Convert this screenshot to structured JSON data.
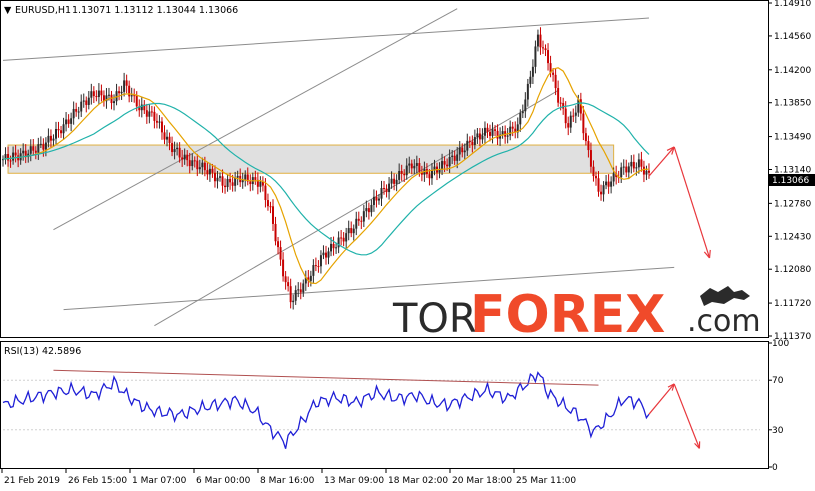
{
  "header": {
    "symbol": "EURUSD,H1",
    "ohlc": "1.13071 1.13112 1.13044 1.13066"
  },
  "logo": {
    "text_tor": "TOR",
    "text_forex": "FOREX",
    "text_com": ".com"
  },
  "chart_data": [
    {
      "type": "candlestick",
      "title": "EURUSD,H1",
      "ylim": [
        1.1137,
        1.1491
      ],
      "y_ticks": [
        "1.14910",
        "1.14560",
        "1.14200",
        "1.13850",
        "1.13490",
        "1.13140",
        "1.12780",
        "1.12430",
        "1.12080",
        "1.11720",
        "1.11370"
      ],
      "current_price": "1.13066",
      "x_ticks": [
        "21 Feb 2019",
        "26 Feb 15:00",
        "1 Mar 07:00",
        "6 Mar 00:00",
        "8 Mar 16:00",
        "13 Mar 09:00",
        "18 Mar 02:00",
        "20 Mar 18:00",
        "25 Mar 11:00"
      ],
      "price_path": [
        [
          0,
          1.1325
        ],
        [
          4,
          1.133
        ],
        [
          8,
          1.134
        ],
        [
          12,
          1.136
        ],
        [
          15,
          1.138
        ],
        [
          18,
          1.1395
        ],
        [
          22,
          1.1388
        ],
        [
          24,
          1.1405
        ],
        [
          27,
          1.138
        ],
        [
          30,
          1.137
        ],
        [
          33,
          1.134
        ],
        [
          36,
          1.1325
        ],
        [
          40,
          1.1315
        ],
        [
          44,
          1.1298
        ],
        [
          47,
          1.1305
        ],
        [
          51,
          1.13
        ],
        [
          53,
          1.127
        ],
        [
          55,
          1.1215
        ],
        [
          57,
          1.1175
        ],
        [
          60,
          1.1195
        ],
        [
          63,
          1.122
        ],
        [
          66,
          1.1235
        ],
        [
          69,
          1.125
        ],
        [
          72,
          1.127
        ],
        [
          75,
          1.129
        ],
        [
          78,
          1.1305
        ],
        [
          81,
          1.132
        ],
        [
          84,
          1.1308
        ],
        [
          87,
          1.1318
        ],
        [
          90,
          1.133
        ],
        [
          93,
          1.1345
        ],
        [
          96,
          1.1355
        ],
        [
          99,
          1.135
        ],
        [
          102,
          1.136
        ],
        [
          104,
          1.14
        ],
        [
          106,
          1.1455
        ],
        [
          108,
          1.143
        ],
        [
          110,
          1.139
        ],
        [
          112,
          1.136
        ],
        [
          114,
          1.1385
        ],
        [
          116,
          1.133
        ],
        [
          118,
          1.129
        ],
        [
          120,
          1.13
        ],
        [
          123,
          1.1315
        ],
        [
          126,
          1.132
        ],
        [
          128,
          1.1307
        ]
      ],
      "overlays": [
        {
          "name": "moving average (fast)",
          "color": "#e6a300"
        },
        {
          "name": "moving average (slow)",
          "color": "#20b2aa"
        }
      ],
      "zone": {
        "low": 1.131,
        "high": 1.134,
        "color": "#d3d3d3"
      },
      "forecast_color": "#e8383d"
    },
    {
      "type": "line",
      "title": "RSI(13) 42.5896",
      "ylim": [
        0,
        100
      ],
      "y_ticks": [
        "100",
        "70",
        "30",
        "0"
      ],
      "series": [
        {
          "name": "RSI(13)",
          "color": "#1f1fd6",
          "values": [
            [
              0,
              50
            ],
            [
              5,
              55
            ],
            [
              10,
              60
            ],
            [
              14,
              62
            ],
            [
              18,
              58
            ],
            [
              22,
              68
            ],
            [
              25,
              56
            ],
            [
              28,
              48
            ],
            [
              31,
              44
            ],
            [
              35,
              42
            ],
            [
              38,
              46
            ],
            [
              42,
              50
            ],
            [
              46,
              54
            ],
            [
              50,
              45
            ],
            [
              53,
              30
            ],
            [
              56,
              20
            ],
            [
              59,
              35
            ],
            [
              62,
              52
            ],
            [
              66,
              56
            ],
            [
              70,
              52
            ],
            [
              74,
              60
            ],
            [
              78,
              55
            ],
            [
              82,
              58
            ],
            [
              85,
              52
            ],
            [
              88,
              50
            ],
            [
              92,
              56
            ],
            [
              96,
              62
            ],
            [
              100,
              55
            ],
            [
              104,
              68
            ],
            [
              106,
              76
            ],
            [
              108,
              60
            ],
            [
              111,
              50
            ],
            [
              114,
              42
            ],
            [
              117,
              28
            ],
            [
              120,
              40
            ],
            [
              123,
              55
            ],
            [
              126,
              52
            ],
            [
              128,
              42.59
            ]
          ]
        }
      ],
      "trendline_color": "#b05050",
      "forecast_color": "#e8383d"
    }
  ]
}
